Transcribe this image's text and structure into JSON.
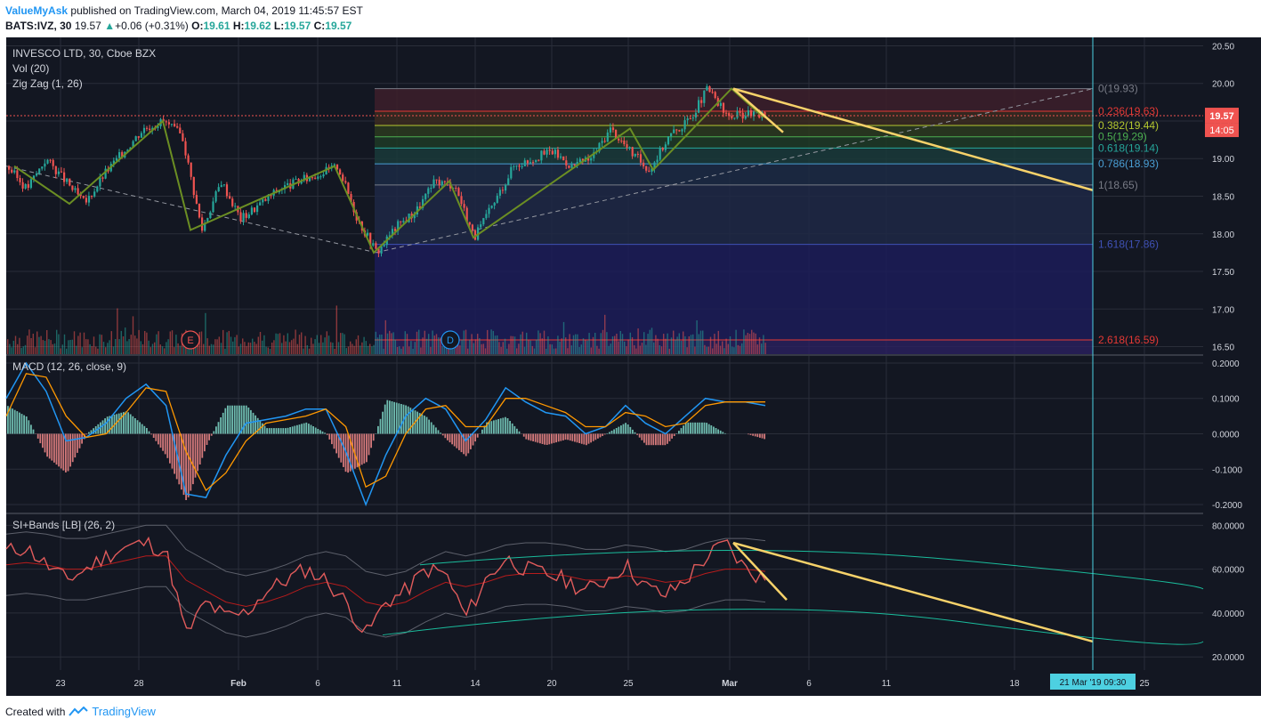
{
  "header": {
    "user": "ValueMyAsk",
    "published_text": "published on TradingView.com, March 04, 2019 11:45:57 EST",
    "symbol": "BATS:IVZ, 30",
    "last": "19.57",
    "change": "+0.06 (+0.31%)",
    "o_label": "O:",
    "o": "19.61",
    "h_label": "H:",
    "h": "19.62",
    "l_label": "L:",
    "l": "19.57",
    "c_label": "C:",
    "c": "19.57"
  },
  "footer": {
    "created_with": "Created with",
    "brand": "TradingView"
  },
  "colors": {
    "bg": "#131722",
    "grid": "#2a2e39",
    "up": "#26a69a",
    "down": "#ef5350",
    "zigzag": "#6b8e23",
    "trend": "#f7d26a",
    "macd": "#2196f3",
    "signal": "#ff9800",
    "rsi": "#e05b5b",
    "band": "#1abc9c",
    "axis_text": "#d1d4dc"
  },
  "chart_data": [
    {
      "type": "candlestick",
      "title": "INVESCO LTD, 30, Cboe BZX",
      "indicators": [
        "Vol (20)",
        "Zig Zag (1, 26)"
      ],
      "ylim": [
        16.4,
        20.6
      ],
      "y_ticks": [
        "20.50",
        "20.00",
        "19.50",
        "19.00",
        "18.50",
        "18.00",
        "17.50",
        "17.00",
        "16.50"
      ],
      "price_label": "19.57",
      "countdown_label": "14:05",
      "x_ticks": [
        "23",
        "28",
        "Feb",
        "6",
        "11",
        "14",
        "20",
        "25",
        "Mar",
        "6",
        "11",
        "18",
        "25"
      ],
      "crosshair_label": "21 Mar '19   09:30",
      "price_path": [
        18.9,
        18.6,
        19.0,
        18.7,
        18.4,
        18.8,
        19.1,
        19.4,
        19.5,
        19.3,
        18.05,
        18.7,
        18.2,
        18.4,
        18.6,
        18.7,
        18.8,
        18.9,
        18.2,
        17.75,
        18.1,
        18.3,
        18.7,
        18.65,
        17.95,
        18.4,
        18.9,
        19.0,
        19.1,
        18.9,
        19.0,
        19.4,
        19.1,
        18.85,
        19.3,
        19.5,
        19.93,
        19.55,
        19.6,
        19.57
      ],
      "zigzag_points": [
        [
          18.9,
          18.9
        ],
        [
          18.4,
          19.5
        ],
        [
          18.05,
          18.9
        ],
        [
          17.75,
          19.1
        ],
        [
          18.65,
          17.95
        ],
        [
          19.4,
          18.85
        ],
        [
          19.93,
          19.55
        ]
      ],
      "fib_levels": [
        {
          "label": "0(19.93)",
          "value": 19.93,
          "color": "#787b86"
        },
        {
          "label": "0.236(19.63)",
          "value": 19.63,
          "color": "#e53935"
        },
        {
          "label": "0.382(19.44)",
          "value": 19.44,
          "color": "#b5c830"
        },
        {
          "label": "0.5(19.29)",
          "value": 19.29,
          "color": "#4caf50"
        },
        {
          "label": "0.618(19.14)",
          "value": 19.14,
          "color": "#26a69a"
        },
        {
          "label": "0.786(18.93)",
          "value": 18.93,
          "color": "#4a9fd5"
        },
        {
          "label": "1(18.65)",
          "value": 18.65,
          "color": "#787b86"
        },
        {
          "label": "1.618(17.86)",
          "value": 17.86,
          "color": "#3f51b5"
        },
        {
          "label": "2.618(16.59)",
          "value": 16.59,
          "color": "#e53935"
        }
      ],
      "volume_markers": [
        "E",
        "D"
      ]
    },
    {
      "type": "line",
      "title": "MACD (12, 26, close, 9)",
      "ylim": [
        -0.22,
        0.22
      ],
      "y_ticks": [
        "0.2000",
        "0.1000",
        "0.0000",
        "-0.1000",
        "-0.2000"
      ],
      "series": [
        {
          "name": "MACD",
          "values": [
            0.1,
            0.2,
            0.12,
            -0.02,
            -0.01,
            0.03,
            0.1,
            0.14,
            0.08,
            -0.17,
            -0.18,
            -0.06,
            0.03,
            0.04,
            0.05,
            0.07,
            0.07,
            -0.05,
            -0.2,
            -0.06,
            0.05,
            0.1,
            0.07,
            -0.02,
            0.04,
            0.13,
            0.09,
            0.06,
            0.05,
            0.0,
            0.02,
            0.08,
            0.03,
            0.0,
            0.05,
            0.1,
            0.09,
            0.09,
            0.08
          ]
        },
        {
          "name": "Signal",
          "values": [
            0.05,
            0.17,
            0.16,
            0.05,
            -0.01,
            0.0,
            0.06,
            0.13,
            0.12,
            -0.05,
            -0.16,
            -0.11,
            -0.02,
            0.03,
            0.04,
            0.05,
            0.07,
            0.02,
            -0.15,
            -0.12,
            0.0,
            0.07,
            0.08,
            0.02,
            0.02,
            0.1,
            0.1,
            0.08,
            0.06,
            0.02,
            0.02,
            0.06,
            0.05,
            0.02,
            0.03,
            0.08,
            0.09,
            0.09,
            0.09
          ]
        }
      ]
    },
    {
      "type": "line",
      "title": "SI+Bands [LB] (26, 2)",
      "ylim": [
        14,
        85
      ],
      "y_ticks": [
        "80.0000",
        "60.0000",
        "40.0000",
        "20.0000"
      ],
      "series": [
        {
          "name": "SI",
          "values": [
            68,
            70,
            62,
            55,
            60,
            66,
            70,
            72,
            68,
            30,
            45,
            38,
            40,
            50,
            55,
            60,
            55,
            45,
            30,
            45,
            50,
            60,
            58,
            38,
            55,
            65,
            60,
            58,
            55,
            50,
            55,
            62,
            52,
            48,
            55,
            65,
            72,
            60,
            55
          ]
        },
        {
          "name": "Basis",
          "values": [
            62,
            63,
            62,
            60,
            60,
            62,
            64,
            66,
            66,
            55,
            50,
            45,
            43,
            45,
            48,
            52,
            54,
            52,
            45,
            43,
            45,
            50,
            54,
            52,
            54,
            57,
            58,
            58,
            57,
            55,
            55,
            57,
            56,
            54,
            55,
            58,
            60,
            60,
            59
          ]
        }
      ],
      "trend_lines": 2
    }
  ]
}
